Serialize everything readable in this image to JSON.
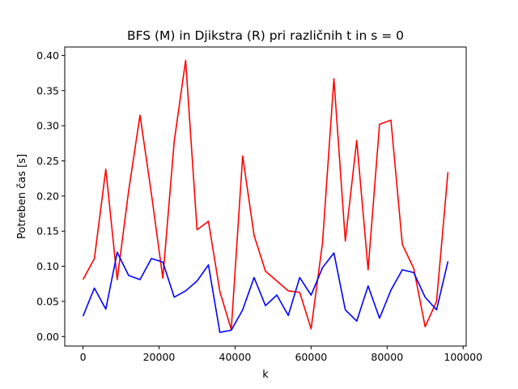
{
  "chart_data": {
    "type": "line",
    "title": "BFS (M) in Djikstra (R) pri različnih t in s = 0",
    "xlabel": "k",
    "ylabel": "Potreben čas [s]",
    "xlim": [
      -4800,
      100800
    ],
    "ylim": [
      -0.0135,
      0.412
    ],
    "x_ticks": [
      0,
      20000,
      40000,
      60000,
      80000,
      100000
    ],
    "x_tick_labels": [
      "0",
      "20000",
      "40000",
      "60000",
      "80000",
      "100000"
    ],
    "y_ticks": [
      0.0,
      0.05,
      0.1,
      0.15,
      0.2,
      0.25,
      0.3,
      0.35,
      0.4
    ],
    "y_tick_labels": [
      "0.00",
      "0.05",
      "0.10",
      "0.15",
      "0.20",
      "0.25",
      "0.30",
      "0.35",
      "0.40"
    ],
    "grid": false,
    "x": [
      0,
      3000,
      6000,
      9000,
      12000,
      15000,
      18000,
      21000,
      24000,
      27000,
      30000,
      33000,
      36000,
      39000,
      42000,
      45000,
      48000,
      51000,
      54000,
      57000,
      60000,
      63000,
      66000,
      69000,
      72000,
      75000,
      78000,
      81000,
      84000,
      87000,
      90000,
      93000,
      96000
    ],
    "series": [
      {
        "color": "#ff0000",
        "values": [
          0.081,
          0.111,
          0.238,
          0.081,
          0.207,
          0.315,
          0.203,
          0.083,
          0.278,
          0.393,
          0.152,
          0.164,
          0.064,
          0.01,
          0.257,
          0.144,
          0.093,
          0.079,
          0.065,
          0.063,
          0.011,
          0.133,
          0.367,
          0.136,
          0.279,
          0.095,
          0.302,
          0.308,
          0.131,
          0.097,
          0.014,
          0.05,
          0.234
        ]
      },
      {
        "color": "#0000ff",
        "values": [
          0.029,
          0.069,
          0.039,
          0.12,
          0.087,
          0.081,
          0.111,
          0.106,
          0.056,
          0.065,
          0.079,
          0.102,
          0.006,
          0.009,
          0.038,
          0.084,
          0.044,
          0.059,
          0.03,
          0.084,
          0.059,
          0.098,
          0.119,
          0.038,
          0.022,
          0.072,
          0.026,
          0.066,
          0.095,
          0.091,
          0.056,
          0.038,
          0.107
        ]
      }
    ]
  }
}
